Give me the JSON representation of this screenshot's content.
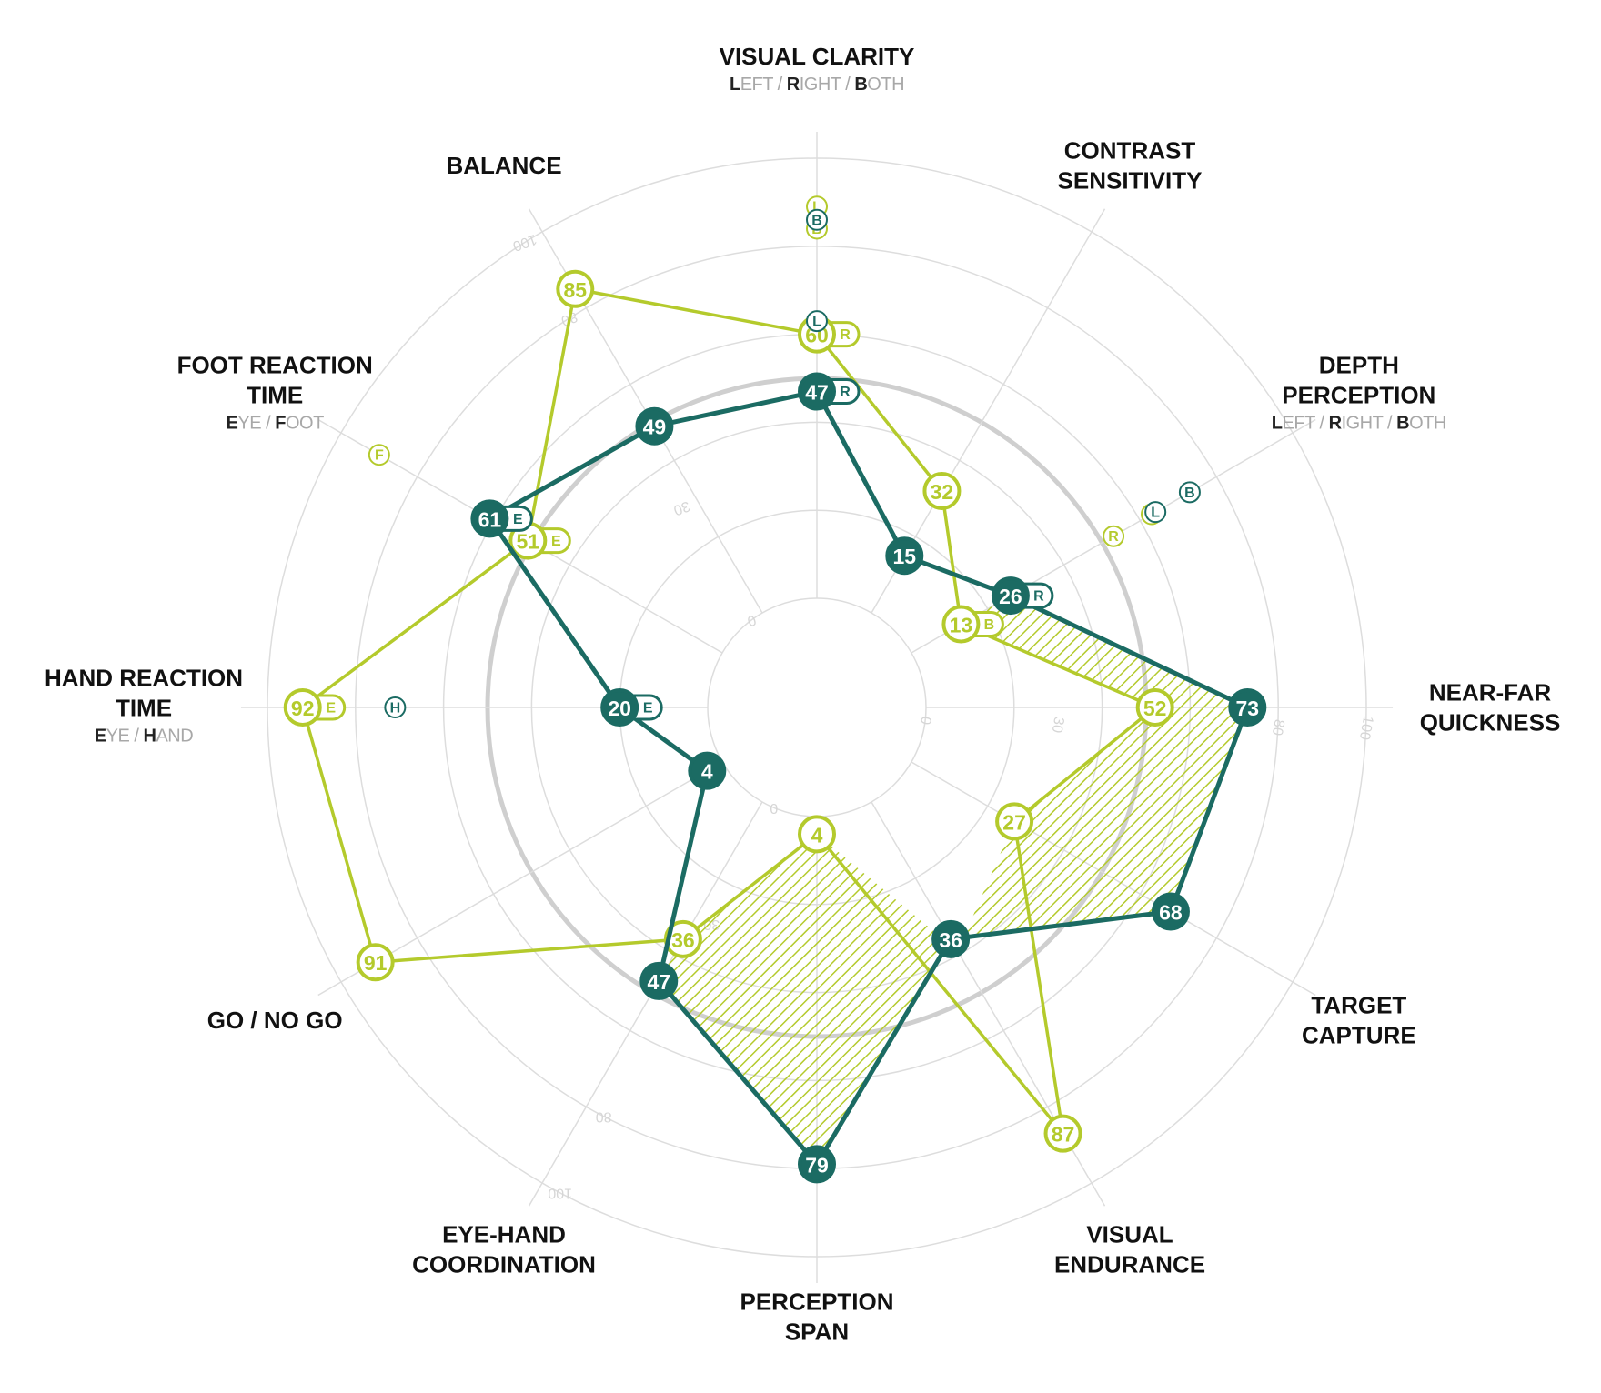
{
  "colors": {
    "dark": "#1b6b63",
    "light": "#b4ca2c",
    "grid": "#dddddd",
    "ring50": "#cfcfcf"
  },
  "chart_data": {
    "type": "radar",
    "axes": [
      {
        "id": "visual-clarity",
        "title": [
          "VISUAL CLARITY"
        ],
        "subtitle": [
          [
            "L",
            "EFT"
          ],
          [
            "R",
            "IGHT"
          ],
          [
            "B",
            "OTH"
          ]
        ]
      },
      {
        "id": "contrast-sensitivity",
        "title": [
          "CONTRAST",
          "SENSITIVITY"
        ]
      },
      {
        "id": "depth-perception",
        "title": [
          "DEPTH",
          "PERCEPTION"
        ],
        "subtitle": [
          [
            "L",
            "EFT"
          ],
          [
            "R",
            "IGHT"
          ],
          [
            "B",
            "OTH"
          ]
        ]
      },
      {
        "id": "near-far-quickness",
        "title": [
          "NEAR-FAR",
          "QUICKNESS"
        ]
      },
      {
        "id": "target-capture",
        "title": [
          "TARGET",
          "CAPTURE"
        ]
      },
      {
        "id": "visual-endurance",
        "title": [
          "VISUAL",
          "ENDURANCE"
        ]
      },
      {
        "id": "perception-span",
        "title": [
          "PERCEPTION",
          "SPAN"
        ]
      },
      {
        "id": "eye-hand-coordination",
        "title": [
          "EYE-HAND",
          "COORDINATION"
        ]
      },
      {
        "id": "go-no-go",
        "title": [
          "GO / NO GO"
        ]
      },
      {
        "id": "hand-reaction-time",
        "title": [
          "HAND REACTION",
          "TIME"
        ],
        "subtitle": [
          [
            "E",
            "YE"
          ],
          [
            "H",
            "AND"
          ]
        ]
      },
      {
        "id": "foot-reaction-time",
        "title": [
          "FOOT REACTION",
          "TIME"
        ],
        "subtitle": [
          [
            "E",
            "YE"
          ],
          [
            "F",
            "OOT"
          ]
        ]
      },
      {
        "id": "balance",
        "title": [
          "BALANCE"
        ]
      }
    ],
    "range": [
      0,
      100
    ],
    "tick_labels": [
      "0",
      "30",
      "80",
      "100"
    ],
    "highlight_ring": 50,
    "series": [
      {
        "key": "light",
        "values": [
          60,
          32,
          13,
          52,
          27,
          87,
          4,
          36,
          91,
          92,
          51,
          85
        ],
        "tags": [
          "R",
          "",
          "B",
          "",
          "",
          "",
          "",
          "",
          "",
          "E",
          "E",
          ""
        ],
        "extras": [
          {
            "axis": 0,
            "value": 89,
            "label": "L"
          },
          {
            "axis": 0,
            "value": 84,
            "label": "B"
          },
          {
            "axis": 2,
            "value": 53,
            "label": "R"
          },
          {
            "axis": 2,
            "value": 63,
            "label": ""
          },
          {
            "axis": 10,
            "value": 90,
            "label": "F"
          }
        ]
      },
      {
        "key": "dark",
        "values": [
          47,
          15,
          26,
          73,
          68,
          36,
          79,
          47,
          4,
          20,
          61,
          49
        ],
        "tags": [
          "R",
          "",
          "R",
          "",
          "",
          "",
          "",
          "",
          "",
          "E",
          "E",
          ""
        ],
        "extras": [
          {
            "axis": 0,
            "value": 86,
            "label": "B"
          },
          {
            "axis": 0,
            "value": 63,
            "label": "L"
          },
          {
            "axis": 2,
            "value": 64,
            "label": "L"
          },
          {
            "axis": 2,
            "value": 73,
            "label": "B"
          },
          {
            "axis": 9,
            "value": 71,
            "label": "H"
          }
        ]
      }
    ]
  }
}
